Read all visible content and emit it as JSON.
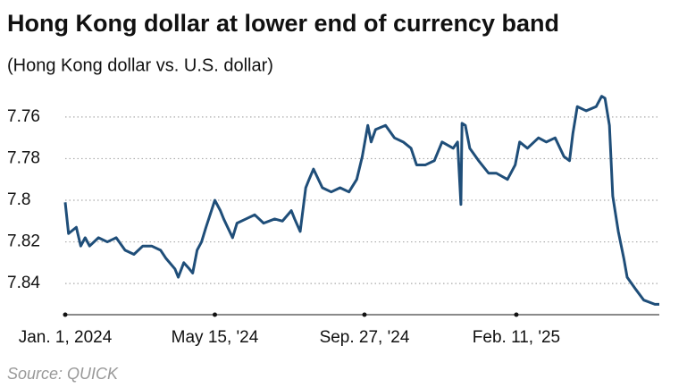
{
  "chart_data": {
    "type": "line",
    "title": "Hong Kong dollar at lower end of currency band",
    "subtitle": "(Hong Kong dollar vs. U.S. dollar)",
    "source": "Source: QUICK",
    "x": [
      "2024-01-01",
      "2024-01-04",
      "2024-01-11",
      "2024-01-15",
      "2024-01-19",
      "2024-01-23",
      "2024-01-31",
      "2024-02-08",
      "2024-02-16",
      "2024-02-24",
      "2024-03-03",
      "2024-03-11",
      "2024-03-19",
      "2024-03-27",
      "2024-04-01",
      "2024-04-09",
      "2024-04-12",
      "2024-04-17",
      "2024-04-22",
      "2024-04-25",
      "2024-04-29",
      "2024-05-03",
      "2024-05-07",
      "2024-05-15",
      "2024-05-20",
      "2024-05-23",
      "2024-05-31",
      "2024-06-04",
      "2024-06-12",
      "2024-06-20",
      "2024-06-28",
      "2024-07-08",
      "2024-07-15",
      "2024-07-23",
      "2024-07-26",
      "2024-07-31",
      "2024-08-05",
      "2024-08-08",
      "2024-08-12",
      "2024-08-20",
      "2024-08-28",
      "2024-09-05",
      "2024-09-13",
      "2024-09-20",
      "2024-09-25",
      "2024-09-30",
      "2024-10-03",
      "2024-10-07",
      "2024-10-16",
      "2024-10-24",
      "2024-11-01",
      "2024-11-08",
      "2024-11-13",
      "2024-11-21",
      "2024-11-29",
      "2024-12-06",
      "2024-12-16",
      "2024-12-20",
      "2024-12-23",
      "2024-12-24",
      "2024-12-27",
      "2024-12-31",
      "2025-01-08",
      "2025-01-17",
      "2025-01-24",
      "2025-02-03",
      "2025-02-10",
      "2025-02-14",
      "2025-02-21",
      "2025-03-03",
      "2025-03-10",
      "2025-03-18",
      "2025-03-26",
      "2025-03-31",
      "2025-04-03",
      "2025-04-07",
      "2025-04-15",
      "2025-04-24",
      "2025-04-29",
      "2025-05-02",
      "2025-05-06",
      "2025-05-09",
      "2025-05-14",
      "2025-05-19",
      "2025-05-22",
      "2025-05-30",
      "2025-06-06",
      "2025-06-16",
      "2025-06-20"
    ],
    "series": [
      {
        "name": "Hong Kong dollar vs. U.S. dollar",
        "color": "#1f4e79",
        "values": [
          7.801,
          7.816,
          7.813,
          7.822,
          7.818,
          7.822,
          7.818,
          7.82,
          7.818,
          7.824,
          7.826,
          7.822,
          7.822,
          7.824,
          7.828,
          7.833,
          7.837,
          7.83,
          7.833,
          7.835,
          7.824,
          7.82,
          7.813,
          7.8,
          7.805,
          7.809,
          7.818,
          7.811,
          7.809,
          7.807,
          7.811,
          7.809,
          7.81,
          7.805,
          7.809,
          7.815,
          7.794,
          7.79,
          7.785,
          7.794,
          7.796,
          7.794,
          7.796,
          7.79,
          7.779,
          7.764,
          7.772,
          7.766,
          7.764,
          7.77,
          7.772,
          7.775,
          7.783,
          7.783,
          7.781,
          7.772,
          7.775,
          7.772,
          7.802,
          7.763,
          7.764,
          7.775,
          7.781,
          7.787,
          7.787,
          7.79,
          7.783,
          7.772,
          7.775,
          7.77,
          7.772,
          7.77,
          7.779,
          7.781,
          7.768,
          7.755,
          7.757,
          7.755,
          7.75,
          7.751,
          7.764,
          7.798,
          7.815,
          7.828,
          7.837,
          7.843,
          7.848,
          7.85,
          7.85
        ]
      }
    ],
    "xlim": [
      "2024-01-01",
      "2025-06-20"
    ],
    "xticks": [
      {
        "value": "2024-01-01",
        "label": "Jan. 1, 2024"
      },
      {
        "value": "2024-05-15",
        "label": "May 15, '24"
      },
      {
        "value": "2024-09-27",
        "label": "Sep. 27, '24"
      },
      {
        "value": "2025-02-11",
        "label": "Feb. 11, '25"
      }
    ],
    "ylim": [
      7.745,
      7.855
    ],
    "y_inverted": true,
    "yticks": [
      7.76,
      7.78,
      7.8,
      7.82,
      7.84
    ],
    "grid": true
  }
}
